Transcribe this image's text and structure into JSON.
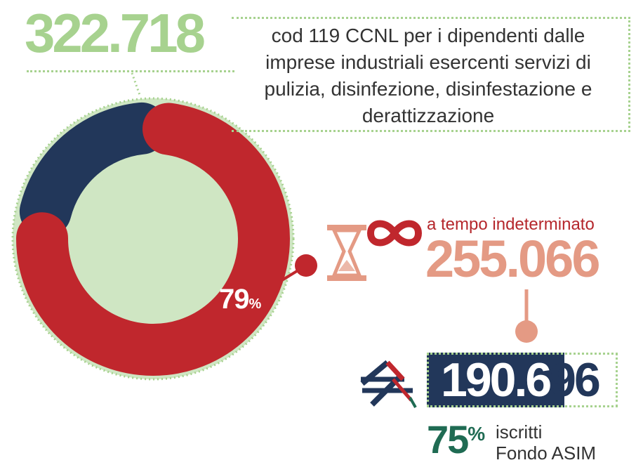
{
  "headline": {
    "total": "322.718",
    "description": "cod 119 CCNL per i dipendenti dalle imprese industriali esercenti servizi di pulizia, disinfezione, disinfestazione e derattizzazione"
  },
  "donut": {
    "percent_value": 79,
    "percent_number": "79",
    "percent_symbol": "%",
    "colors": {
      "primary": "#c0272d",
      "secondary": "#22375a",
      "background": "#cfe6c3",
      "border": "#a7d28f"
    }
  },
  "permanent": {
    "label": "a tempo indeterminato",
    "value": "255.066",
    "icons": [
      "hourglass-icon",
      "infinity-icon"
    ]
  },
  "fondo": {
    "value_part1": "190.6",
    "value_part2": "96",
    "percent_number": "75",
    "percent_symbol": "%",
    "label_line1": "iscritti",
    "label_line2": "Fondo ASIM",
    "logo": "asim-logo"
  }
}
